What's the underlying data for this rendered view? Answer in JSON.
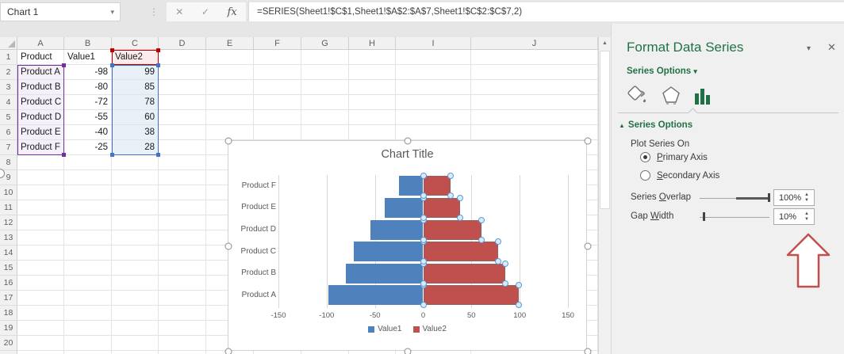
{
  "formula_bar": {
    "name_box_value": "Chart 1",
    "formula": "=SERIES(Sheet1!$C$1,Sheet1!$A$2:$A$7,Sheet1!$C$2:$C$7,2)",
    "cancel_icon": "✕",
    "enter_icon": "✓",
    "fx_icon": "fx",
    "name_caret": "▾",
    "grip_icon": "⋮"
  },
  "sheet": {
    "columns": [
      "A",
      "B",
      "C",
      "D",
      "E",
      "F",
      "G",
      "H",
      "I",
      "J"
    ],
    "visible_row_count": 21,
    "rows": [
      [
        "Product",
        "Value1",
        "Value2"
      ],
      [
        "Product A",
        "-98",
        "99"
      ],
      [
        "Product B",
        "-80",
        "85"
      ],
      [
        "Product C",
        "-72",
        "78"
      ],
      [
        "Product D",
        "-55",
        "60"
      ],
      [
        "Product E",
        "-40",
        "38"
      ],
      [
        "Product F",
        "-25",
        "28"
      ]
    ],
    "range_highlights": [
      {
        "range": "A2:A7",
        "accent": "#7030A0",
        "fill": "#f5effa"
      },
      {
        "range": "C1:C1",
        "accent": "#C00000",
        "fill": "#fdecec"
      },
      {
        "range": "C2:C7",
        "accent": "#4472C4",
        "fill": "#e9f0f8"
      }
    ]
  },
  "chart_data": {
    "type": "bar",
    "orientation": "horizontal",
    "title": "Chart Title",
    "categories": [
      "Product A",
      "Product B",
      "Product C",
      "Product D",
      "Product E",
      "Product F"
    ],
    "series": [
      {
        "name": "Value1",
        "color": "#4F81BD",
        "values": [
          -98,
          -80,
          -72,
          -55,
          -40,
          -25
        ]
      },
      {
        "name": "Value2",
        "color": "#C0504D",
        "values": [
          99,
          85,
          78,
          60,
          38,
          28
        ]
      }
    ],
    "xlim": [
      -150,
      150
    ],
    "x_ticks": [
      "-150",
      "-100",
      "-50",
      "0",
      "50",
      "100",
      "150"
    ],
    "grid": true,
    "legend_position": "bottom",
    "selected_series": "Value2"
  },
  "panel": {
    "title": "Format Data Series",
    "collapse_icon": "▾",
    "close_icon": "✕",
    "section_dropdown": "Series Options",
    "section_dropdown_caret": "▾",
    "selected_tab": "series-options",
    "options_header": "Series Options",
    "options_header_tri": "▲",
    "plot_series_on": "Plot Series On",
    "primary_axis": "Primary Axis",
    "secondary_axis": "Secondary Axis",
    "series_overlap_label": "Series Overlap",
    "series_overlap_value": "100%",
    "gap_width_label": "Gap Width",
    "gap_width_value": "10%",
    "accelerators": {
      "primary-axis-label": "P",
      "secondary-axis-label": "S",
      "series-overlap-label": "O",
      "gap-width-label": "W"
    },
    "accent_color": "#217346",
    "annotation_arrow_color": "#C0504D"
  }
}
